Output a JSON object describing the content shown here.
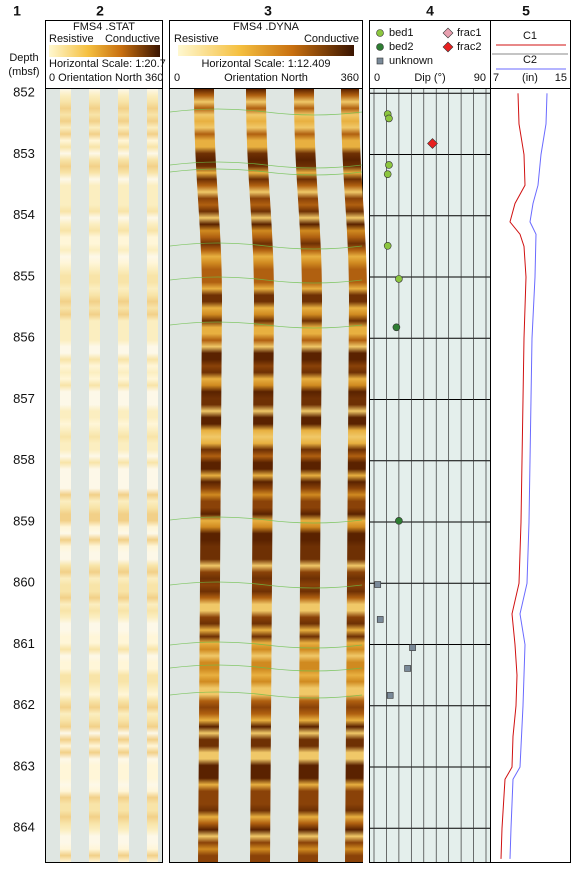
{
  "columns": [
    "1",
    "2",
    "3",
    "4",
    "5"
  ],
  "chart_data": {
    "type": "well-log",
    "depth_label": "Depth",
    "depth_unit": "(mbsf)",
    "ylim": [
      851.93,
      864.55
    ],
    "yticks": [
      852,
      853,
      854,
      855,
      856,
      857,
      858,
      859,
      860,
      861,
      862,
      863,
      864
    ],
    "static_image": {
      "title": "FMS4 .STAT",
      "left": "Resistive",
      "right": "Conductive",
      "scale": "Horizontal Scale: 1:20.7",
      "orientation": "0 Orientation North 360"
    },
    "dynamic_image": {
      "title": "FMS4 .DYNA",
      "left": "Resistive",
      "right": "Conductive",
      "scale": "Horizontal Scale:  1:12.409",
      "orientation_start": "0",
      "orientation": "Orientation North",
      "orientation_end": "360"
    },
    "dip": {
      "xlabel": "Dip (°)",
      "xlim": [
        0,
        90
      ],
      "xticks": [
        0,
        90
      ],
      "minor_xticks": [
        10,
        20,
        30,
        40,
        50,
        60,
        70,
        80
      ],
      "series": [
        {
          "name": "bed1",
          "color": "#8cc63f",
          "shape": "circle",
          "depth": [
            852.34,
            852.41,
            853.17,
            853.32,
            854.49,
            855.03
          ],
          "dip": [
            11,
            12,
            12,
            11,
            11,
            20
          ]
        },
        {
          "name": "bed2",
          "color": "#2e7d32",
          "shape": "circle",
          "depth": [
            855.82,
            858.98
          ],
          "dip": [
            18,
            20
          ]
        },
        {
          "name": "unknown",
          "color": "#7a8a99",
          "shape": "square",
          "depth": [
            860.02,
            860.59,
            861.05,
            861.39,
            861.83
          ],
          "dip": [
            3,
            5,
            31,
            27,
            13
          ]
        },
        {
          "name": "frac1",
          "color": "#e8a0b0",
          "shape": "diamond",
          "depth": [],
          "dip": []
        },
        {
          "name": "frac2",
          "color": "#e82020",
          "shape": "diamond",
          "depth": [
            852.82
          ],
          "dip": [
            47
          ]
        }
      ]
    },
    "caliper": {
      "xlabel": "(in)",
      "xlim": [
        7,
        15
      ],
      "xticks": [
        7,
        15
      ],
      "series": [
        {
          "name": "C1",
          "color": "#d01010",
          "depth": [
            852,
            852.5,
            853,
            853.5,
            853.8,
            854.1,
            854.3,
            854.5,
            855,
            856,
            857,
            858,
            859,
            860,
            860.5,
            861,
            861.5,
            862,
            862.5,
            863,
            863.2,
            864,
            864.5
          ],
          "values": [
            9.67,
            9.78,
            10.33,
            10.44,
            9.33,
            8.78,
            9.89,
            10.33,
            10.56,
            10.33,
            10.22,
            10.11,
            10.0,
            9.78,
            9.0,
            9.33,
            9.56,
            9.44,
            9.11,
            9.0,
            8.22,
            7.89,
            7.78
          ]
        },
        {
          "name": "C2",
          "color": "#6a6aff",
          "depth": [
            852,
            852.5,
            853,
            853.5,
            853.8,
            854.1,
            854.3,
            855,
            856,
            857,
            858,
            859,
            860,
            860.5,
            861,
            862,
            863,
            863.2,
            864,
            864.5
          ],
          "values": [
            12.89,
            12.78,
            12.22,
            11.89,
            11.33,
            11.0,
            11.67,
            11.56,
            11.22,
            11.11,
            11.0,
            10.89,
            10.67,
            9.89,
            10.44,
            10.22,
            9.89,
            9.11,
            8.89,
            8.78
          ]
        }
      ]
    }
  }
}
